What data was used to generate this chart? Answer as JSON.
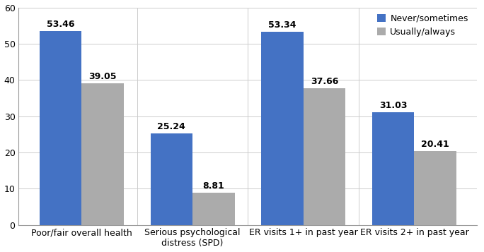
{
  "categories": [
    "Poor/fair overall health",
    "Serious psychological\ndistress (SPD)",
    "ER visits 1+ in past year",
    "ER visits 2+ in past year"
  ],
  "never_sometimes": [
    53.46,
    25.24,
    53.34,
    31.03
  ],
  "usually_always": [
    39.05,
    8.81,
    37.66,
    20.41
  ],
  "bar_color_blue": "#4472C4",
  "bar_color_gray": "#ABABAB",
  "legend_labels": [
    "Never/sometimes",
    "Usually/always"
  ],
  "ylim": [
    0,
    60
  ],
  "yticks": [
    0,
    10,
    20,
    30,
    40,
    50,
    60
  ],
  "bar_width": 0.38,
  "tick_fontsize": 9,
  "legend_fontsize": 9,
  "value_fontsize": 9
}
